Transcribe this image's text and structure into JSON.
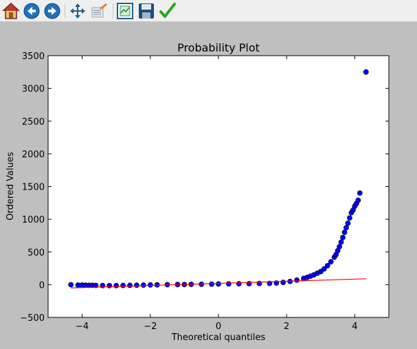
{
  "toolbar": {
    "buttons": [
      {
        "icon": "home-icon"
      },
      {
        "icon": "back-arrow-icon"
      },
      {
        "icon": "forward-arrow-icon"
      },
      {
        "icon": "pan-icon"
      },
      {
        "icon": "zoom-rect-icon"
      },
      {
        "icon": "configure-subplots-icon"
      },
      {
        "icon": "save-icon"
      },
      {
        "icon": "edit-check-icon"
      }
    ]
  },
  "colors": {
    "figure_bg": "#bfbfbf",
    "axes_bg": "#ffffff",
    "markers": "#0000ff",
    "fit_line": "#ff0000"
  },
  "chart_data": {
    "type": "scatter",
    "title": "Probability Plot",
    "xlabel": "Theoretical quantiles",
    "ylabel": "Ordered Values",
    "xlim": [
      -5,
      5
    ],
    "ylim": [
      -500,
      3500
    ],
    "xticks": [
      -4,
      -2,
      0,
      2,
      4
    ],
    "xtick_labels": [
      "−4",
      "−2",
      "0",
      "2",
      "4"
    ],
    "yticks": [
      -500,
      0,
      500,
      1000,
      1500,
      2000,
      2500,
      3000,
      3500
    ],
    "ytick_labels": [
      "−500",
      "0",
      "500",
      "1000",
      "1500",
      "2000",
      "2500",
      "3000",
      "3500"
    ],
    "grid": false,
    "series": [
      {
        "kind": "points",
        "points": [
          [
            -4.33,
            0
          ],
          [
            -4.12,
            -5
          ],
          [
            -4.0,
            -5
          ],
          [
            -3.9,
            -8
          ],
          [
            -3.8,
            -10
          ],
          [
            -3.7,
            -10
          ],
          [
            -3.6,
            -12
          ],
          [
            -3.4,
            -14
          ],
          [
            -3.2,
            -15
          ],
          [
            -3.0,
            -14
          ],
          [
            -2.8,
            -12
          ],
          [
            -2.6,
            -10
          ],
          [
            -2.4,
            -8
          ],
          [
            -2.2,
            -6
          ],
          [
            -2.0,
            -4
          ],
          [
            -1.8,
            -2
          ],
          [
            -1.5,
            0
          ],
          [
            -1.2,
            2
          ],
          [
            -1.0,
            3
          ],
          [
            -0.8,
            5
          ],
          [
            -0.5,
            6
          ],
          [
            -0.2,
            8
          ],
          [
            0.0,
            10
          ],
          [
            0.3,
            12
          ],
          [
            0.6,
            14
          ],
          [
            0.9,
            16
          ],
          [
            1.2,
            18
          ],
          [
            1.5,
            20
          ],
          [
            1.7,
            25
          ],
          [
            1.9,
            35
          ],
          [
            2.1,
            50
          ],
          [
            2.3,
            70
          ],
          [
            2.5,
            95
          ],
          [
            2.6,
            110
          ],
          [
            2.7,
            130
          ],
          [
            2.8,
            150
          ],
          [
            2.9,
            175
          ],
          [
            3.0,
            200
          ],
          [
            3.1,
            240
          ],
          [
            3.2,
            290
          ],
          [
            3.3,
            350
          ],
          [
            3.4,
            420
          ],
          [
            3.45,
            460
          ],
          [
            3.5,
            520
          ],
          [
            3.55,
            580
          ],
          [
            3.6,
            650
          ],
          [
            3.65,
            720
          ],
          [
            3.7,
            800
          ],
          [
            3.75,
            870
          ],
          [
            3.8,
            940
          ],
          [
            3.85,
            1020
          ],
          [
            3.9,
            1100
          ],
          [
            3.95,
            1140
          ],
          [
            4.0,
            1200
          ],
          [
            4.05,
            1240
          ],
          [
            4.1,
            1290
          ],
          [
            4.15,
            1400
          ],
          [
            4.33,
            3250
          ]
        ]
      },
      {
        "kind": "fit_line",
        "points": [
          [
            -4.33,
            -50
          ],
          [
            4.33,
            90
          ]
        ]
      }
    ]
  }
}
